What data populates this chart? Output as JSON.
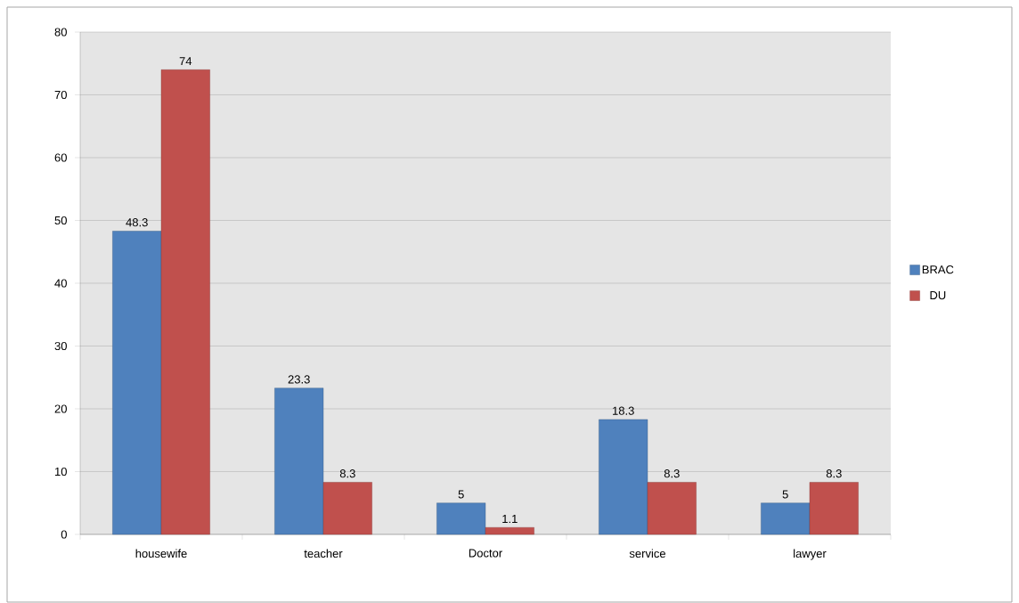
{
  "chart_data": {
    "type": "bar",
    "categories": [
      "housewife",
      "teacher",
      "Doctor",
      "service",
      "lawyer"
    ],
    "series": [
      {
        "name": "BRAC",
        "color": "#4f81bd",
        "values": [
          48.3,
          23.3,
          5,
          18.3,
          5
        ]
      },
      {
        "name": "DU",
        "color": "#c0504d",
        "values": [
          74,
          8.3,
          1.1,
          8.3,
          8.3
        ]
      }
    ],
    "ylim": [
      0,
      80
    ],
    "yticks": [
      0,
      10,
      20,
      30,
      40,
      50,
      60,
      70,
      80
    ],
    "grid": "y",
    "legend": "right",
    "data_labels": true
  }
}
